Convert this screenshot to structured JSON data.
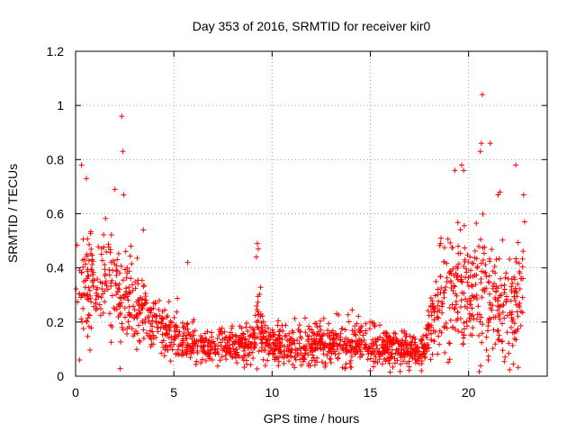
{
  "chart_data": {
    "type": "scatter",
    "title": "Day 353 of 2016, SRMTID for receiver kir0",
    "xlabel": "GPS time / hours",
    "ylabel": "SRMTID / TECUs",
    "xlim": [
      0,
      24
    ],
    "ylim": [
      0,
      1.2
    ],
    "x_ticks": [
      0,
      5,
      10,
      15,
      20
    ],
    "x_tick_labels": [
      "0",
      "5",
      "10",
      "15",
      "20"
    ],
    "y_ticks": [
      0,
      0.2,
      0.4,
      0.6,
      0.8,
      1,
      1.2
    ],
    "y_tick_labels": [
      "0",
      "0.2",
      "0.4",
      "0.6",
      "0.8",
      "1",
      "1.2"
    ],
    "grid": true,
    "marker": "+",
    "color": "#ff0000",
    "series": [
      {
        "name": "SRMTID",
        "profile_x": [
          0,
          0.5,
          1.0,
          1.5,
          2.0,
          2.5,
          3.0,
          3.5,
          4.0,
          4.5,
          5.0,
          5.5,
          6.0,
          6.5,
          7.0,
          7.5,
          8.0,
          8.5,
          9.0,
          9.3,
          9.6,
          10.0,
          10.5,
          11.0,
          11.5,
          12.0,
          12.5,
          13.0,
          13.5,
          14.0,
          14.5,
          15.0,
          15.5,
          16.0,
          16.5,
          17.0,
          17.5,
          17.8,
          18.0,
          18.5,
          19.0,
          19.5,
          20.0,
          20.5,
          21.0,
          21.5,
          22.0,
          22.5,
          22.8
        ],
        "profile_y": [
          0.3,
          0.35,
          0.34,
          0.33,
          0.3,
          0.3,
          0.27,
          0.24,
          0.2,
          0.17,
          0.15,
          0.13,
          0.12,
          0.11,
          0.11,
          0.12,
          0.12,
          0.12,
          0.13,
          0.2,
          0.14,
          0.12,
          0.11,
          0.1,
          0.11,
          0.12,
          0.12,
          0.11,
          0.11,
          0.12,
          0.12,
          0.11,
          0.1,
          0.1,
          0.1,
          0.1,
          0.09,
          0.1,
          0.17,
          0.28,
          0.33,
          0.32,
          0.3,
          0.31,
          0.28,
          0.26,
          0.24,
          0.26,
          0.3
        ],
        "profile_spread": [
          0.14,
          0.13,
          0.12,
          0.11,
          0.11,
          0.1,
          0.09,
          0.08,
          0.06,
          0.05,
          0.05,
          0.045,
          0.04,
          0.04,
          0.04,
          0.04,
          0.04,
          0.04,
          0.045,
          0.09,
          0.05,
          0.045,
          0.04,
          0.04,
          0.045,
          0.05,
          0.05,
          0.045,
          0.045,
          0.05,
          0.05,
          0.045,
          0.04,
          0.04,
          0.04,
          0.04,
          0.035,
          0.04,
          0.06,
          0.12,
          0.15,
          0.15,
          0.14,
          0.16,
          0.15,
          0.13,
          0.12,
          0.12,
          0.13
        ],
        "n_points": 1700,
        "seed": 353,
        "outliers": [
          {
            "x": 2.35,
            "y": 0.96
          },
          {
            "x": 2.4,
            "y": 0.83
          },
          {
            "x": 0.3,
            "y": 0.78
          },
          {
            "x": 0.55,
            "y": 0.73
          },
          {
            "x": 2.0,
            "y": 0.69
          },
          {
            "x": 2.45,
            "y": 0.67
          },
          {
            "x": 3.45,
            "y": 0.54
          },
          {
            "x": 5.7,
            "y": 0.42
          },
          {
            "x": 9.25,
            "y": 0.49
          },
          {
            "x": 9.3,
            "y": 0.47
          },
          {
            "x": 9.2,
            "y": 0.44
          },
          {
            "x": 19.3,
            "y": 0.76
          },
          {
            "x": 19.65,
            "y": 0.78
          },
          {
            "x": 19.75,
            "y": 0.76
          },
          {
            "x": 20.7,
            "y": 1.04
          },
          {
            "x": 20.65,
            "y": 0.86
          },
          {
            "x": 20.6,
            "y": 0.83
          },
          {
            "x": 21.1,
            "y": 0.86
          },
          {
            "x": 21.5,
            "y": 0.67
          },
          {
            "x": 21.6,
            "y": 0.68
          },
          {
            "x": 22.4,
            "y": 0.78
          },
          {
            "x": 22.8,
            "y": 0.67
          },
          {
            "x": 22.85,
            "y": 0.57
          },
          {
            "x": 0.2,
            "y": 0.06
          },
          {
            "x": 15.0,
            "y": 0.02
          },
          {
            "x": 17.6,
            "y": 0.02
          },
          {
            "x": 21.0,
            "y": 0.06
          }
        ]
      }
    ]
  }
}
